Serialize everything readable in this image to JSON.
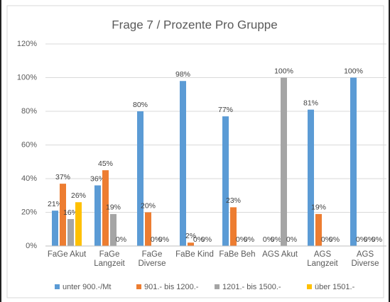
{
  "chart_data": {
    "type": "bar",
    "title": "Frage 7 / Prozente Pro Gruppe",
    "categories": [
      "FaGe Akut",
      "FaGe Langzeit",
      "FaGe Diverse",
      "FaBe Kind",
      "FaBe Beh",
      "AGS Akut",
      "AGS Langzeit",
      "AGS Diverse"
    ],
    "series": [
      {
        "name": "unter 900.-/Mt",
        "color": "#5b9bd5",
        "values": [
          21,
          36,
          80,
          98,
          77,
          0,
          81,
          100
        ],
        "value_labels": [
          "21%",
          "36%",
          "80%",
          "98%",
          "77%",
          "0%",
          "81%",
          "100%"
        ]
      },
      {
        "name": "901.- bis 1200.-",
        "color": "#ed7d31",
        "values": [
          37,
          45,
          20,
          2,
          23,
          0,
          19,
          0
        ],
        "value_labels": [
          "37%",
          "45%",
          "20%",
          "2%",
          "23%",
          "0%",
          "19%",
          "0%"
        ]
      },
      {
        "name": "1201.- bis 1500.-",
        "color": "#a5a5a5",
        "values": [
          16,
          19,
          0,
          0,
          0,
          100,
          0,
          0
        ],
        "value_labels": [
          "16%",
          "19%",
          "0%",
          "0%",
          "0%",
          "100%",
          "0%",
          "0%"
        ]
      },
      {
        "name": "über 1501.-",
        "color": "#ffc000",
        "values": [
          26,
          0,
          0,
          0,
          0,
          0,
          0,
          0
        ],
        "value_labels": [
          "26%",
          "0%",
          "0%",
          "0%",
          "0%",
          "0%",
          "0%",
          "0%"
        ]
      }
    ],
    "ylim": [
      0,
      120
    ],
    "yticks": [
      {
        "value": 0,
        "label": "0%"
      },
      {
        "value": 20,
        "label": "20%"
      },
      {
        "value": 40,
        "label": "40%"
      },
      {
        "value": 60,
        "label": "60%"
      },
      {
        "value": 80,
        "label": "80%"
      },
      {
        "value": 100,
        "label": "100%"
      },
      {
        "value": 120,
        "label": "120%"
      }
    ],
    "grid": true,
    "legend": "bottom"
  }
}
